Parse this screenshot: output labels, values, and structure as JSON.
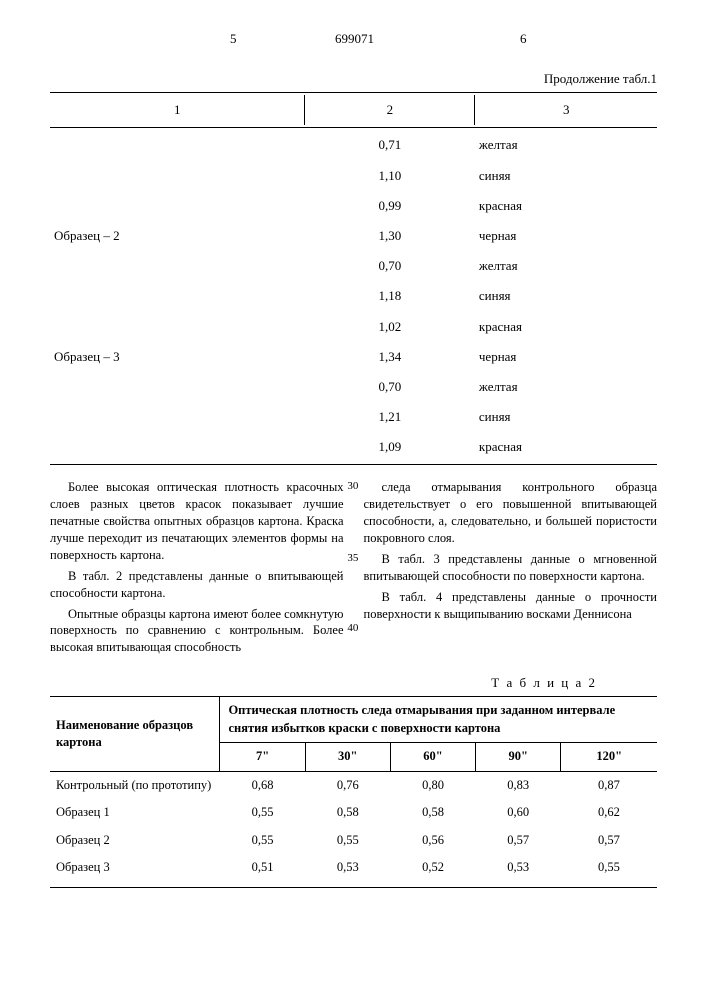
{
  "header": {
    "page_left": "5",
    "doc_id": "699071",
    "page_right": "6"
  },
  "table1": {
    "continuation": "Продолжение табл.1",
    "headers": {
      "c1": "1",
      "c2": "2",
      "c3": "3"
    },
    "rows": [
      {
        "c1": "",
        "c2": "0,71",
        "c3": "желтая"
      },
      {
        "c1": "",
        "c2": "1,10",
        "c3": "синяя"
      },
      {
        "c1": "",
        "c2": "0,99",
        "c3": "красная"
      },
      {
        "c1": "Образец – 2",
        "c2": "1,30",
        "c3": "черная"
      },
      {
        "c1": "",
        "c2": "0,70",
        "c3": "желтая"
      },
      {
        "c1": "",
        "c2": "1,18",
        "c3": "синяя"
      },
      {
        "c1": "",
        "c2": "1,02",
        "c3": "красная"
      },
      {
        "c1": "Образец – 3",
        "c2": "1,34",
        "c3": "черная"
      },
      {
        "c1": "",
        "c2": "0,70",
        "c3": "желтая"
      },
      {
        "c1": "",
        "c2": "1,21",
        "c3": "синяя"
      },
      {
        "c1": "",
        "c2": "1,09",
        "c3": "красная"
      }
    ]
  },
  "line_numbers": {
    "l30": "30",
    "l35": "35",
    "l40": "40"
  },
  "body": {
    "left": {
      "p1": "Более высокая оптическая плотность красочных слоев разных цветов красок показывает лучшие печатные свойства опытных образцов картона. Краска лучше переходит из печатающих элементов формы на поверхность картона.",
      "p2": "В табл. 2 представлены данные о впитывающей способности картона.",
      "p3": "Опытные образцы картона имеют более сомкнутую поверхность по сравнению с контрольным. Более высокая впитывающая способность"
    },
    "right": {
      "p1": "следа отмарывания контрольного образца свидетельствует о его повышенной впитывающей способности, а, следовательно, и большей пористости покровного слоя.",
      "p2": "В табл. 3 представлены данные о мгновенной впитывающей способности по поверхности картона.",
      "p3": "В табл. 4 представлены данные о прочности поверхности к выщипыванию восками Деннисона"
    }
  },
  "table2": {
    "label": "Т а б л и ц а   2",
    "header_name": "Наименование образцов картона",
    "header_group": "Оптическая плотность следа отмарывания при заданном интервале снятия избытков краски с поверхности картона",
    "cols": {
      "c1": "7\"",
      "c2": "30\"",
      "c3": "60\"",
      "c4": "90\"",
      "c5": "120\""
    },
    "rows": [
      {
        "name": "Контрольный (по прототипу)",
        "v": [
          "0,68",
          "0,76",
          "0,80",
          "0,83",
          "0,87"
        ],
        "indent": false
      },
      {
        "name": "Образец 1",
        "v": [
          "0,55",
          "0,58",
          "0,58",
          "0,60",
          "0,62"
        ],
        "indent": true
      },
      {
        "name": "Образец 2",
        "v": [
          "0,55",
          "0,55",
          "0,56",
          "0,57",
          "0,57"
        ],
        "indent": true
      },
      {
        "name": "Образец 3",
        "v": [
          "0,51",
          "0,53",
          "0,52",
          "0,53",
          "0,55"
        ],
        "indent": true
      }
    ]
  }
}
